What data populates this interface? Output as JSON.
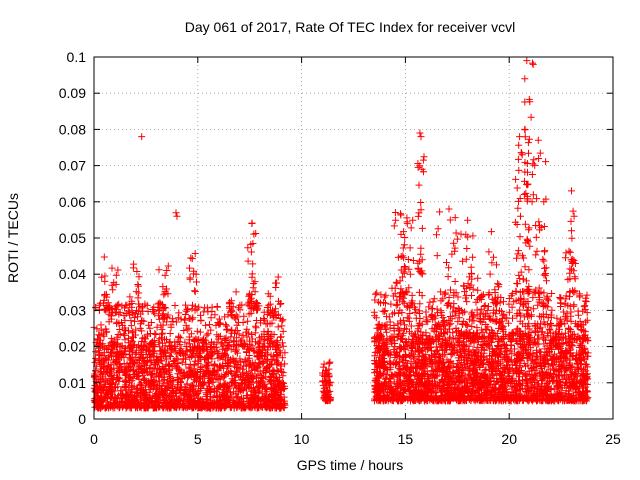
{
  "chart_data": {
    "type": "scatter",
    "title": "Day 061 of 2017, Rate Of TEC Index for receiver vcvl",
    "xlabel": "GPS time / hours",
    "ylabel": "ROTI / TECUs",
    "xlim": [
      0,
      24
    ],
    "ylim": [
      0,
      0.1
    ],
    "x_ticks": [
      "0",
      "5",
      "10",
      "15",
      "20",
      "25"
    ],
    "y_ticks": [
      "0",
      "0.01",
      "0.02",
      "0.03",
      "0.04",
      "0.05",
      "0.06",
      "0.07",
      "0.08",
      "0.09",
      "0.1"
    ],
    "grid": true,
    "marker": "+",
    "color": "#ff0000",
    "series": [
      {
        "clusters": [
          {
            "x_range": [
              0.0,
              9.2
            ],
            "y_range": [
              0.003,
              0.02
            ],
            "n": 1800
          },
          {
            "x_range": [
              0.0,
              9.2
            ],
            "y_range": [
              0.02,
              0.032
            ],
            "n": 420
          },
          {
            "x_range": [
              0.3,
              1.2
            ],
            "y_range": [
              0.03,
              0.045
            ],
            "n": 30
          },
          {
            "x_range": [
              1.7,
              2.2
            ],
            "y_range": [
              0.028,
              0.046
            ],
            "n": 22
          },
          {
            "x_range": [
              3.1,
              3.6
            ],
            "y_range": [
              0.028,
              0.043
            ],
            "n": 18
          },
          {
            "x_range": [
              4.6,
              5.0
            ],
            "y_range": [
              0.03,
              0.046
            ],
            "n": 16
          },
          {
            "x_range": [
              6.5,
              7.0
            ],
            "y_range": [
              0.028,
              0.04
            ],
            "n": 14
          },
          {
            "x_range": [
              7.4,
              7.9
            ],
            "y_range": [
              0.03,
              0.055
            ],
            "n": 34
          },
          {
            "x_range": [
              8.3,
              9.0
            ],
            "y_range": [
              0.028,
              0.04
            ],
            "n": 18
          },
          {
            "x_range": [
              11.0,
              11.4
            ],
            "y_range": [
              0.005,
              0.016
            ],
            "n": 70
          },
          {
            "x_range": [
              13.5,
              23.8
            ],
            "y_range": [
              0.005,
              0.022
            ],
            "n": 2200
          },
          {
            "x_range": [
              13.5,
              23.8
            ],
            "y_range": [
              0.022,
              0.035
            ],
            "n": 650
          },
          {
            "x_range": [
              14.3,
              15.4
            ],
            "y_range": [
              0.035,
              0.058
            ],
            "n": 40
          },
          {
            "x_range": [
              15.6,
              15.9
            ],
            "y_range": [
              0.04,
              0.079
            ],
            "n": 24
          },
          {
            "x_range": [
              16.5,
              18.5
            ],
            "y_range": [
              0.035,
              0.058
            ],
            "n": 42
          },
          {
            "x_range": [
              19.0,
              19.6
            ],
            "y_range": [
              0.032,
              0.052
            ],
            "n": 16
          },
          {
            "x_range": [
              20.3,
              21.0
            ],
            "y_range": [
              0.035,
              0.078
            ],
            "n": 60
          },
          {
            "x_range": [
              20.7,
              21.2
            ],
            "y_range": [
              0.06,
              0.099
            ],
            "n": 22
          },
          {
            "x_range": [
              21.2,
              21.8
            ],
            "y_range": [
              0.035,
              0.077
            ],
            "n": 30
          },
          {
            "x_range": [
              22.7,
              23.2
            ],
            "y_range": [
              0.035,
              0.064
            ],
            "n": 30
          }
        ],
        "points": [
          [
            2.3,
            0.078
          ],
          [
            3.95,
            0.057
          ],
          [
            4.0,
            0.056
          ],
          [
            7.6,
            0.054
          ],
          [
            15.7,
            0.079
          ],
          [
            15.75,
            0.078
          ],
          [
            20.85,
            0.099
          ],
          [
            21.4,
            0.077
          ],
          [
            20.5,
            0.078
          ],
          [
            23.0,
            0.063
          ],
          [
            17.1,
            0.058
          ],
          [
            15.8,
            0.069
          ]
        ]
      }
    ]
  }
}
